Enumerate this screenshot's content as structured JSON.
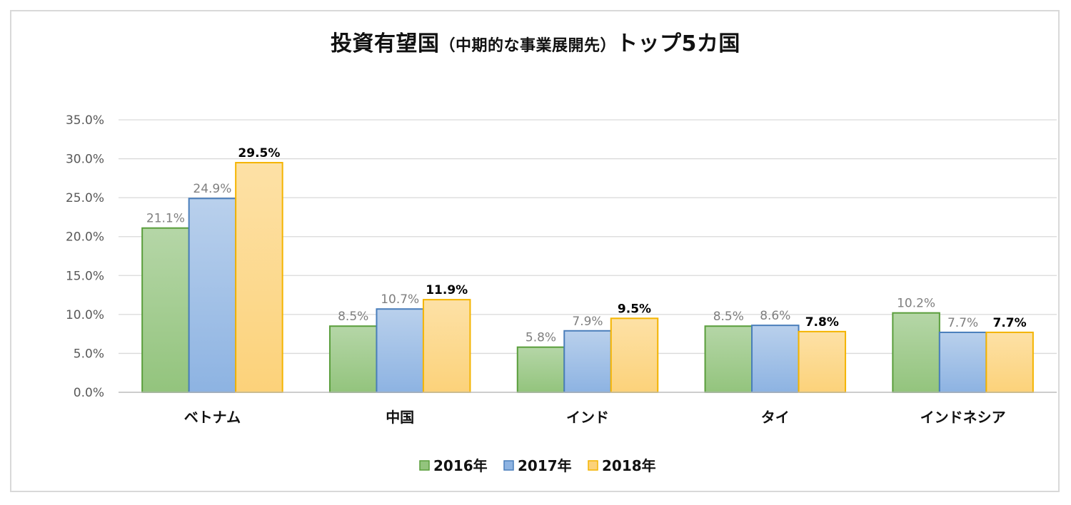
{
  "chart_data": {
    "type": "bar",
    "title_main": "投資有望国",
    "title_paren": "（中期的な事業展開先）",
    "title_tail": "トップ5カ国",
    "categories": [
      "ベトナム",
      "中国",
      "インド",
      "タイ",
      "インドネシア"
    ],
    "series": [
      {
        "name": "2016年",
        "values": [
          21.1,
          8.5,
          5.8,
          8.5,
          10.2
        ],
        "labels": [
          "21.1%",
          "8.5%",
          "5.8%",
          "8.5%",
          "10.2%"
        ],
        "color_top": "#b5d6a7",
        "color_bottom": "#93c47d",
        "stroke": "#5a9e3c"
      },
      {
        "name": "2017年",
        "values": [
          24.9,
          10.7,
          7.9,
          8.6,
          7.7
        ],
        "labels": [
          "24.9%",
          "10.7%",
          "7.9%",
          "8.6%",
          "7.7%"
        ],
        "color_top": "#b9d0ec",
        "color_bottom": "#8db3e2",
        "stroke": "#4a7ebb"
      },
      {
        "name": "2018年",
        "values": [
          29.5,
          11.9,
          9.5,
          7.8,
          7.7
        ],
        "labels": [
          "29.5%",
          "11.9%",
          "9.5%",
          "7.8%",
          "7.7%"
        ],
        "color_top": "#fde1a6",
        "color_bottom": "#fcd27a",
        "stroke": "#f4b400"
      }
    ],
    "ylim": [
      0,
      35
    ],
    "yticks": [
      0,
      5,
      10,
      15,
      20,
      25,
      30,
      35
    ],
    "ytick_labels": [
      "0.0%",
      "5.0%",
      "10.0%",
      "15.0%",
      "20.0%",
      "25.0%",
      "30.0%",
      "35.0%"
    ],
    "grid": true,
    "legend_position": "bottom"
  }
}
